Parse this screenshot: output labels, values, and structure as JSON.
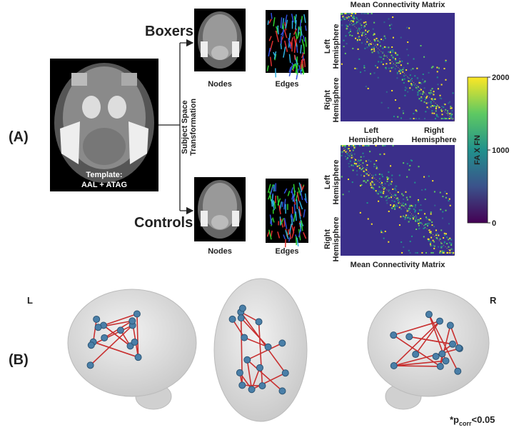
{
  "panel_a": {
    "label": "(A)",
    "template": {
      "line1": "Template:",
      "line2": "AAL + ATAG"
    },
    "transform_label": [
      "Subject Space",
      "Transformation"
    ],
    "groups": [
      {
        "name": "Boxers",
        "nodes_label": "Nodes",
        "edges_label": "Edges",
        "matrix": {
          "title": "Mean Connectivity Matrix",
          "row_labels": [
            [
              "Left",
              "Hemisphere"
            ],
            [
              "Right",
              "Hemisphere"
            ]
          ]
        }
      },
      {
        "name": "Controls",
        "nodes_label": "Nodes",
        "edges_label": "Edges",
        "matrix": {
          "title": "Mean Connectivity Matrix",
          "column_labels": [
            [
              "Left",
              "Hemisphere"
            ],
            [
              "Right",
              "Hemisphere"
            ]
          ],
          "row_labels": [
            [
              "Left",
              "Hemisphere"
            ],
            [
              "Right",
              "Hemisphere"
            ]
          ]
        }
      }
    ],
    "colorbar": {
      "label": "FA X FN",
      "lim": [
        0,
        2000
      ],
      "ticks": [
        0,
        1000,
        2000
      ]
    }
  },
  "panel_b": {
    "label": "(B)",
    "views": [
      "L",
      "R"
    ],
    "significance": {
      "prefix": "*p",
      "subscript": "corr",
      "suffix": "<0.05"
    }
  }
}
